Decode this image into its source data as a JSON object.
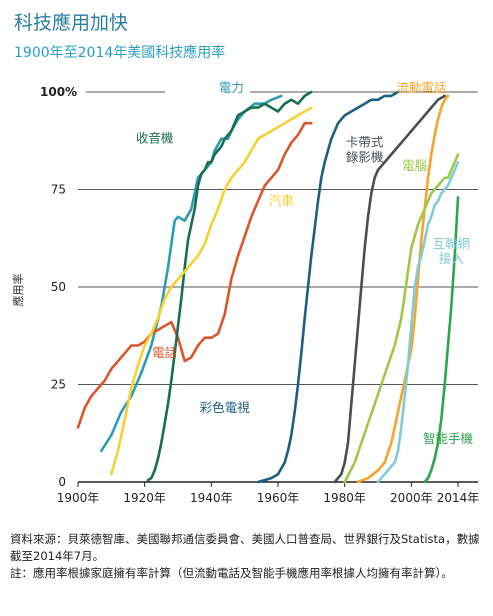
{
  "header": {
    "title": "科技應用加快",
    "subtitle": "1900年至2014年美國科技應用率"
  },
  "footer": {
    "source": "資料來源：貝萊德智庫、美國聯邦通信委員會、美國人口普查局、世界銀行及Statista，數據截至2014年7月。",
    "note": "註：應用率根據家庭擁有率計算（但流動電話及智能手機應用率根據人均擁有率計算）。"
  },
  "chart_data": {
    "type": "line",
    "title": "1900年至2014年美國科技應用率",
    "xlabel": "",
    "ylabel": "應用率",
    "xlim": [
      1900,
      2020
    ],
    "ylim": [
      0,
      100
    ],
    "x_ticks": [
      "1900年",
      "1920年",
      "1940年",
      "1960年",
      "1980年",
      "2000年",
      "2014年"
    ],
    "x_tick_values": [
      1900,
      1920,
      1940,
      1960,
      1980,
      2000,
      2014
    ],
    "y_ticks": [
      "0",
      "25",
      "50",
      "75",
      "100%"
    ],
    "y_tick_values": [
      0,
      25,
      50,
      75,
      100
    ],
    "grid": "horizontal",
    "series": [
      {
        "name": "電力",
        "color": "#2b9cb5",
        "label_at": [
          1946,
          100
        ],
        "points": [
          [
            1907,
            8
          ],
          [
            1910,
            12
          ],
          [
            1913,
            18
          ],
          [
            1916,
            22
          ],
          [
            1919,
            28
          ],
          [
            1922,
            35
          ],
          [
            1925,
            45
          ],
          [
            1927,
            55
          ],
          [
            1929,
            67
          ],
          [
            1930,
            68
          ],
          [
            1932,
            67
          ],
          [
            1934,
            70
          ],
          [
            1936,
            78
          ],
          [
            1938,
            80
          ],
          [
            1940,
            82
          ],
          [
            1941,
            85
          ],
          [
            1943,
            88
          ],
          [
            1945,
            88
          ],
          [
            1946,
            90
          ],
          [
            1948,
            93
          ],
          [
            1950,
            95
          ],
          [
            1953,
            97
          ],
          [
            1956,
            97
          ],
          [
            1958,
            98
          ],
          [
            1961,
            99
          ]
        ]
      },
      {
        "name": "電話",
        "color": "#d9572b",
        "label_at": [
          1926,
          32
        ],
        "points": [
          [
            1900,
            14
          ],
          [
            1902,
            19
          ],
          [
            1904,
            22
          ],
          [
            1906,
            24
          ],
          [
            1908,
            26
          ],
          [
            1910,
            29
          ],
          [
            1912,
            31
          ],
          [
            1914,
            33
          ],
          [
            1916,
            35
          ],
          [
            1918,
            35
          ],
          [
            1920,
            36
          ],
          [
            1922,
            38
          ],
          [
            1924,
            39
          ],
          [
            1926,
            40
          ],
          [
            1928,
            41
          ],
          [
            1930,
            37
          ],
          [
            1932,
            31
          ],
          [
            1934,
            32
          ],
          [
            1936,
            35
          ],
          [
            1938,
            37
          ],
          [
            1940,
            37
          ],
          [
            1942,
            38
          ],
          [
            1944,
            43
          ],
          [
            1946,
            52
          ],
          [
            1948,
            58
          ],
          [
            1950,
            63
          ],
          [
            1952,
            68
          ],
          [
            1954,
            72
          ],
          [
            1956,
            76
          ],
          [
            1958,
            78
          ],
          [
            1960,
            80
          ],
          [
            1962,
            84
          ],
          [
            1964,
            87
          ],
          [
            1966,
            89
          ],
          [
            1968,
            92
          ],
          [
            1970,
            92
          ]
        ]
      },
      {
        "name": "收音機",
        "color": "#1a6e4e",
        "label_at": [
          1923,
          87
        ],
        "points": [
          [
            1921,
            0.5
          ],
          [
            1922,
            1
          ],
          [
            1923,
            3
          ],
          [
            1924,
            6
          ],
          [
            1925,
            10
          ],
          [
            1926,
            15
          ],
          [
            1927,
            20
          ],
          [
            1928,
            26
          ],
          [
            1929,
            33
          ],
          [
            1930,
            40
          ],
          [
            1931,
            47
          ],
          [
            1932,
            55
          ],
          [
            1933,
            62
          ],
          [
            1934,
            66
          ],
          [
            1935,
            70
          ],
          [
            1936,
            76
          ],
          [
            1937,
            79
          ],
          [
            1938,
            80
          ],
          [
            1939,
            82
          ],
          [
            1940,
            82
          ],
          [
            1941,
            84
          ],
          [
            1942,
            85
          ],
          [
            1943,
            86
          ],
          [
            1944,
            88
          ],
          [
            1946,
            90
          ],
          [
            1948,
            94
          ],
          [
            1950,
            95
          ],
          [
            1952,
            96
          ],
          [
            1954,
            96
          ],
          [
            1956,
            97
          ],
          [
            1958,
            96
          ],
          [
            1960,
            95
          ],
          [
            1962,
            97
          ],
          [
            1964,
            98
          ],
          [
            1966,
            97
          ],
          [
            1968,
            99
          ],
          [
            1970,
            100
          ]
        ]
      },
      {
        "name": "汽車",
        "color": "#f6d130",
        "label_at": [
          1961,
          71
        ],
        "points": [
          [
            1910,
            2
          ],
          [
            1912,
            8
          ],
          [
            1914,
            16
          ],
          [
            1916,
            24
          ],
          [
            1918,
            30
          ],
          [
            1920,
            35
          ],
          [
            1922,
            38
          ],
          [
            1924,
            42
          ],
          [
            1926,
            47
          ],
          [
            1928,
            50
          ],
          [
            1930,
            52
          ],
          [
            1932,
            54
          ],
          [
            1934,
            56
          ],
          [
            1936,
            58
          ],
          [
            1938,
            61
          ],
          [
            1940,
            66
          ],
          [
            1942,
            70
          ],
          [
            1944,
            75
          ],
          [
            1946,
            78
          ],
          [
            1948,
            80
          ],
          [
            1950,
            82
          ],
          [
            1952,
            85
          ],
          [
            1954,
            88
          ],
          [
            1956,
            89
          ],
          [
            1958,
            90
          ],
          [
            1960,
            91
          ],
          [
            1962,
            92
          ],
          [
            1964,
            93
          ],
          [
            1966,
            94
          ],
          [
            1968,
            95
          ],
          [
            1970,
            96
          ]
        ]
      },
      {
        "name": "彩色電視",
        "color": "#1c5f80",
        "label_at": [
          1944,
          18
        ],
        "points": [
          [
            1954,
            0
          ],
          [
            1956,
            0.5
          ],
          [
            1958,
            1
          ],
          [
            1960,
            2
          ],
          [
            1962,
            5
          ],
          [
            1963,
            8
          ],
          [
            1964,
            12
          ],
          [
            1965,
            18
          ],
          [
            1966,
            25
          ],
          [
            1967,
            33
          ],
          [
            1968,
            42
          ],
          [
            1969,
            50
          ],
          [
            1970,
            58
          ],
          [
            1971,
            65
          ],
          [
            1972,
            72
          ],
          [
            1973,
            78
          ],
          [
            1974,
            82
          ],
          [
            1975,
            85
          ],
          [
            1976,
            88
          ],
          [
            1977,
            90
          ],
          [
            1978,
            92
          ],
          [
            1980,
            94
          ],
          [
            1982,
            95
          ],
          [
            1984,
            96
          ],
          [
            1986,
            97
          ],
          [
            1988,
            98
          ],
          [
            1990,
            98
          ],
          [
            1992,
            99
          ],
          [
            1994,
            99
          ],
          [
            1996,
            100
          ]
        ]
      },
      {
        "name": "卡帶式錄影機",
        "color": "#4a4f55",
        "label_at": [
          1986,
          86
        ],
        "points": [
          [
            1977,
            0
          ],
          [
            1979,
            2
          ],
          [
            1980,
            5
          ],
          [
            1981,
            10
          ],
          [
            1982,
            20
          ],
          [
            1983,
            30
          ],
          [
            1984,
            40
          ],
          [
            1985,
            50
          ],
          [
            1986,
            60
          ],
          [
            1987,
            68
          ],
          [
            1988,
            74
          ],
          [
            1989,
            78
          ],
          [
            1990,
            80
          ],
          [
            1992,
            82
          ],
          [
            1994,
            84
          ],
          [
            1996,
            86
          ],
          [
            1998,
            88
          ],
          [
            2000,
            90
          ],
          [
            2002,
            92
          ],
          [
            2004,
            94
          ],
          [
            2006,
            96
          ],
          [
            2008,
            98
          ],
          [
            2010,
            99
          ]
        ]
      },
      {
        "name": "流動電話",
        "color": "#f6a42a",
        "label_at": [
          2003,
          100
        ],
        "points": [
          [
            1984,
            0
          ],
          [
            1987,
            1
          ],
          [
            1990,
            3
          ],
          [
            1992,
            5
          ],
          [
            1994,
            10
          ],
          [
            1996,
            18
          ],
          [
            1998,
            26
          ],
          [
            2000,
            34
          ],
          [
            2001,
            42
          ],
          [
            2002,
            52
          ],
          [
            2003,
            62
          ],
          [
            2004,
            70
          ],
          [
            2005,
            78
          ],
          [
            2006,
            84
          ],
          [
            2007,
            89
          ],
          [
            2008,
            93
          ],
          [
            2009,
            96
          ],
          [
            2010,
            98
          ],
          [
            2011,
            99
          ]
        ]
      },
      {
        "name": "電腦",
        "color": "#9dc84a",
        "label_at": [
          2001,
          80
        ],
        "points": [
          [
            1980,
            0
          ],
          [
            1983,
            5
          ],
          [
            1985,
            10
          ],
          [
            1987,
            15
          ],
          [
            1989,
            20
          ],
          [
            1991,
            25
          ],
          [
            1993,
            30
          ],
          [
            1995,
            35
          ],
          [
            1997,
            42
          ],
          [
            1998,
            48
          ],
          [
            1999,
            54
          ],
          [
            2000,
            60
          ],
          [
            2001,
            63
          ],
          [
            2002,
            66
          ],
          [
            2003,
            68
          ],
          [
            2004,
            70
          ],
          [
            2005,
            72
          ],
          [
            2006,
            74
          ],
          [
            2007,
            75
          ],
          [
            2008,
            76
          ],
          [
            2009,
            77
          ],
          [
            2010,
            78
          ],
          [
            2011,
            78
          ],
          [
            2012,
            80
          ],
          [
            2013,
            82
          ],
          [
            2014,
            84
          ]
        ]
      },
      {
        "name": "互聯網接入",
        "color": "#7fcbd6",
        "label_at": [
          2012,
          60
        ],
        "points": [
          [
            1990,
            0
          ],
          [
            1991,
            1
          ],
          [
            1993,
            3
          ],
          [
            1995,
            5
          ],
          [
            1996,
            8
          ],
          [
            1997,
            14
          ],
          [
            1998,
            22
          ],
          [
            1999,
            30
          ],
          [
            2000,
            40
          ],
          [
            2001,
            50
          ],
          [
            2002,
            55
          ],
          [
            2003,
            58
          ],
          [
            2004,
            62
          ],
          [
            2005,
            66
          ],
          [
            2006,
            68
          ],
          [
            2007,
            71
          ],
          [
            2008,
            72
          ],
          [
            2009,
            74
          ],
          [
            2010,
            75
          ],
          [
            2011,
            76
          ],
          [
            2012,
            78
          ],
          [
            2013,
            80
          ],
          [
            2014,
            82
          ]
        ]
      },
      {
        "name": "智能手機",
        "color": "#2ba64a",
        "label_at": [
          2011,
          10
        ],
        "points": [
          [
            2004,
            0
          ],
          [
            2005,
            1
          ],
          [
            2006,
            3
          ],
          [
            2007,
            6
          ],
          [
            2008,
            10
          ],
          [
            2009,
            16
          ],
          [
            2010,
            25
          ],
          [
            2011,
            35
          ],
          [
            2012,
            45
          ],
          [
            2013,
            58
          ],
          [
            2014,
            73
          ]
        ]
      }
    ]
  }
}
